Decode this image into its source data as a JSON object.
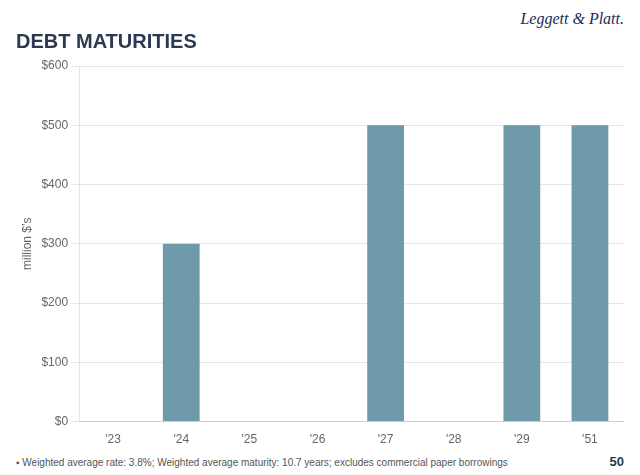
{
  "chart_data": {
    "type": "bar",
    "title": "DEBT MATURITIES",
    "ylabel": "million $’s",
    "categories": [
      "'23",
      "'24",
      "'25",
      "'26",
      "'27",
      "'28",
      "'29",
      "'51"
    ],
    "values": [
      0,
      300,
      0,
      0,
      500,
      0,
      500,
      500
    ],
    "color": "#6f9aaa",
    "ylim": [
      0,
      600
    ],
    "yticks": [
      {
        "value": 0,
        "label": "$0"
      },
      {
        "value": 100,
        "label": "$100"
      },
      {
        "value": 200,
        "label": "$200"
      },
      {
        "value": 300,
        "label": "$300"
      },
      {
        "value": 400,
        "label": "$400"
      },
      {
        "value": 500,
        "label": "$500"
      },
      {
        "value": 600,
        "label": "$600"
      }
    ],
    "grid": true,
    "annotations": [
      "Leggett & Platt.",
      "▪",
      "Weighted average rate: 3.8%; Weighted average maturity: 10.7 years; excludes commercial paper borrowings",
      "50"
    ]
  }
}
